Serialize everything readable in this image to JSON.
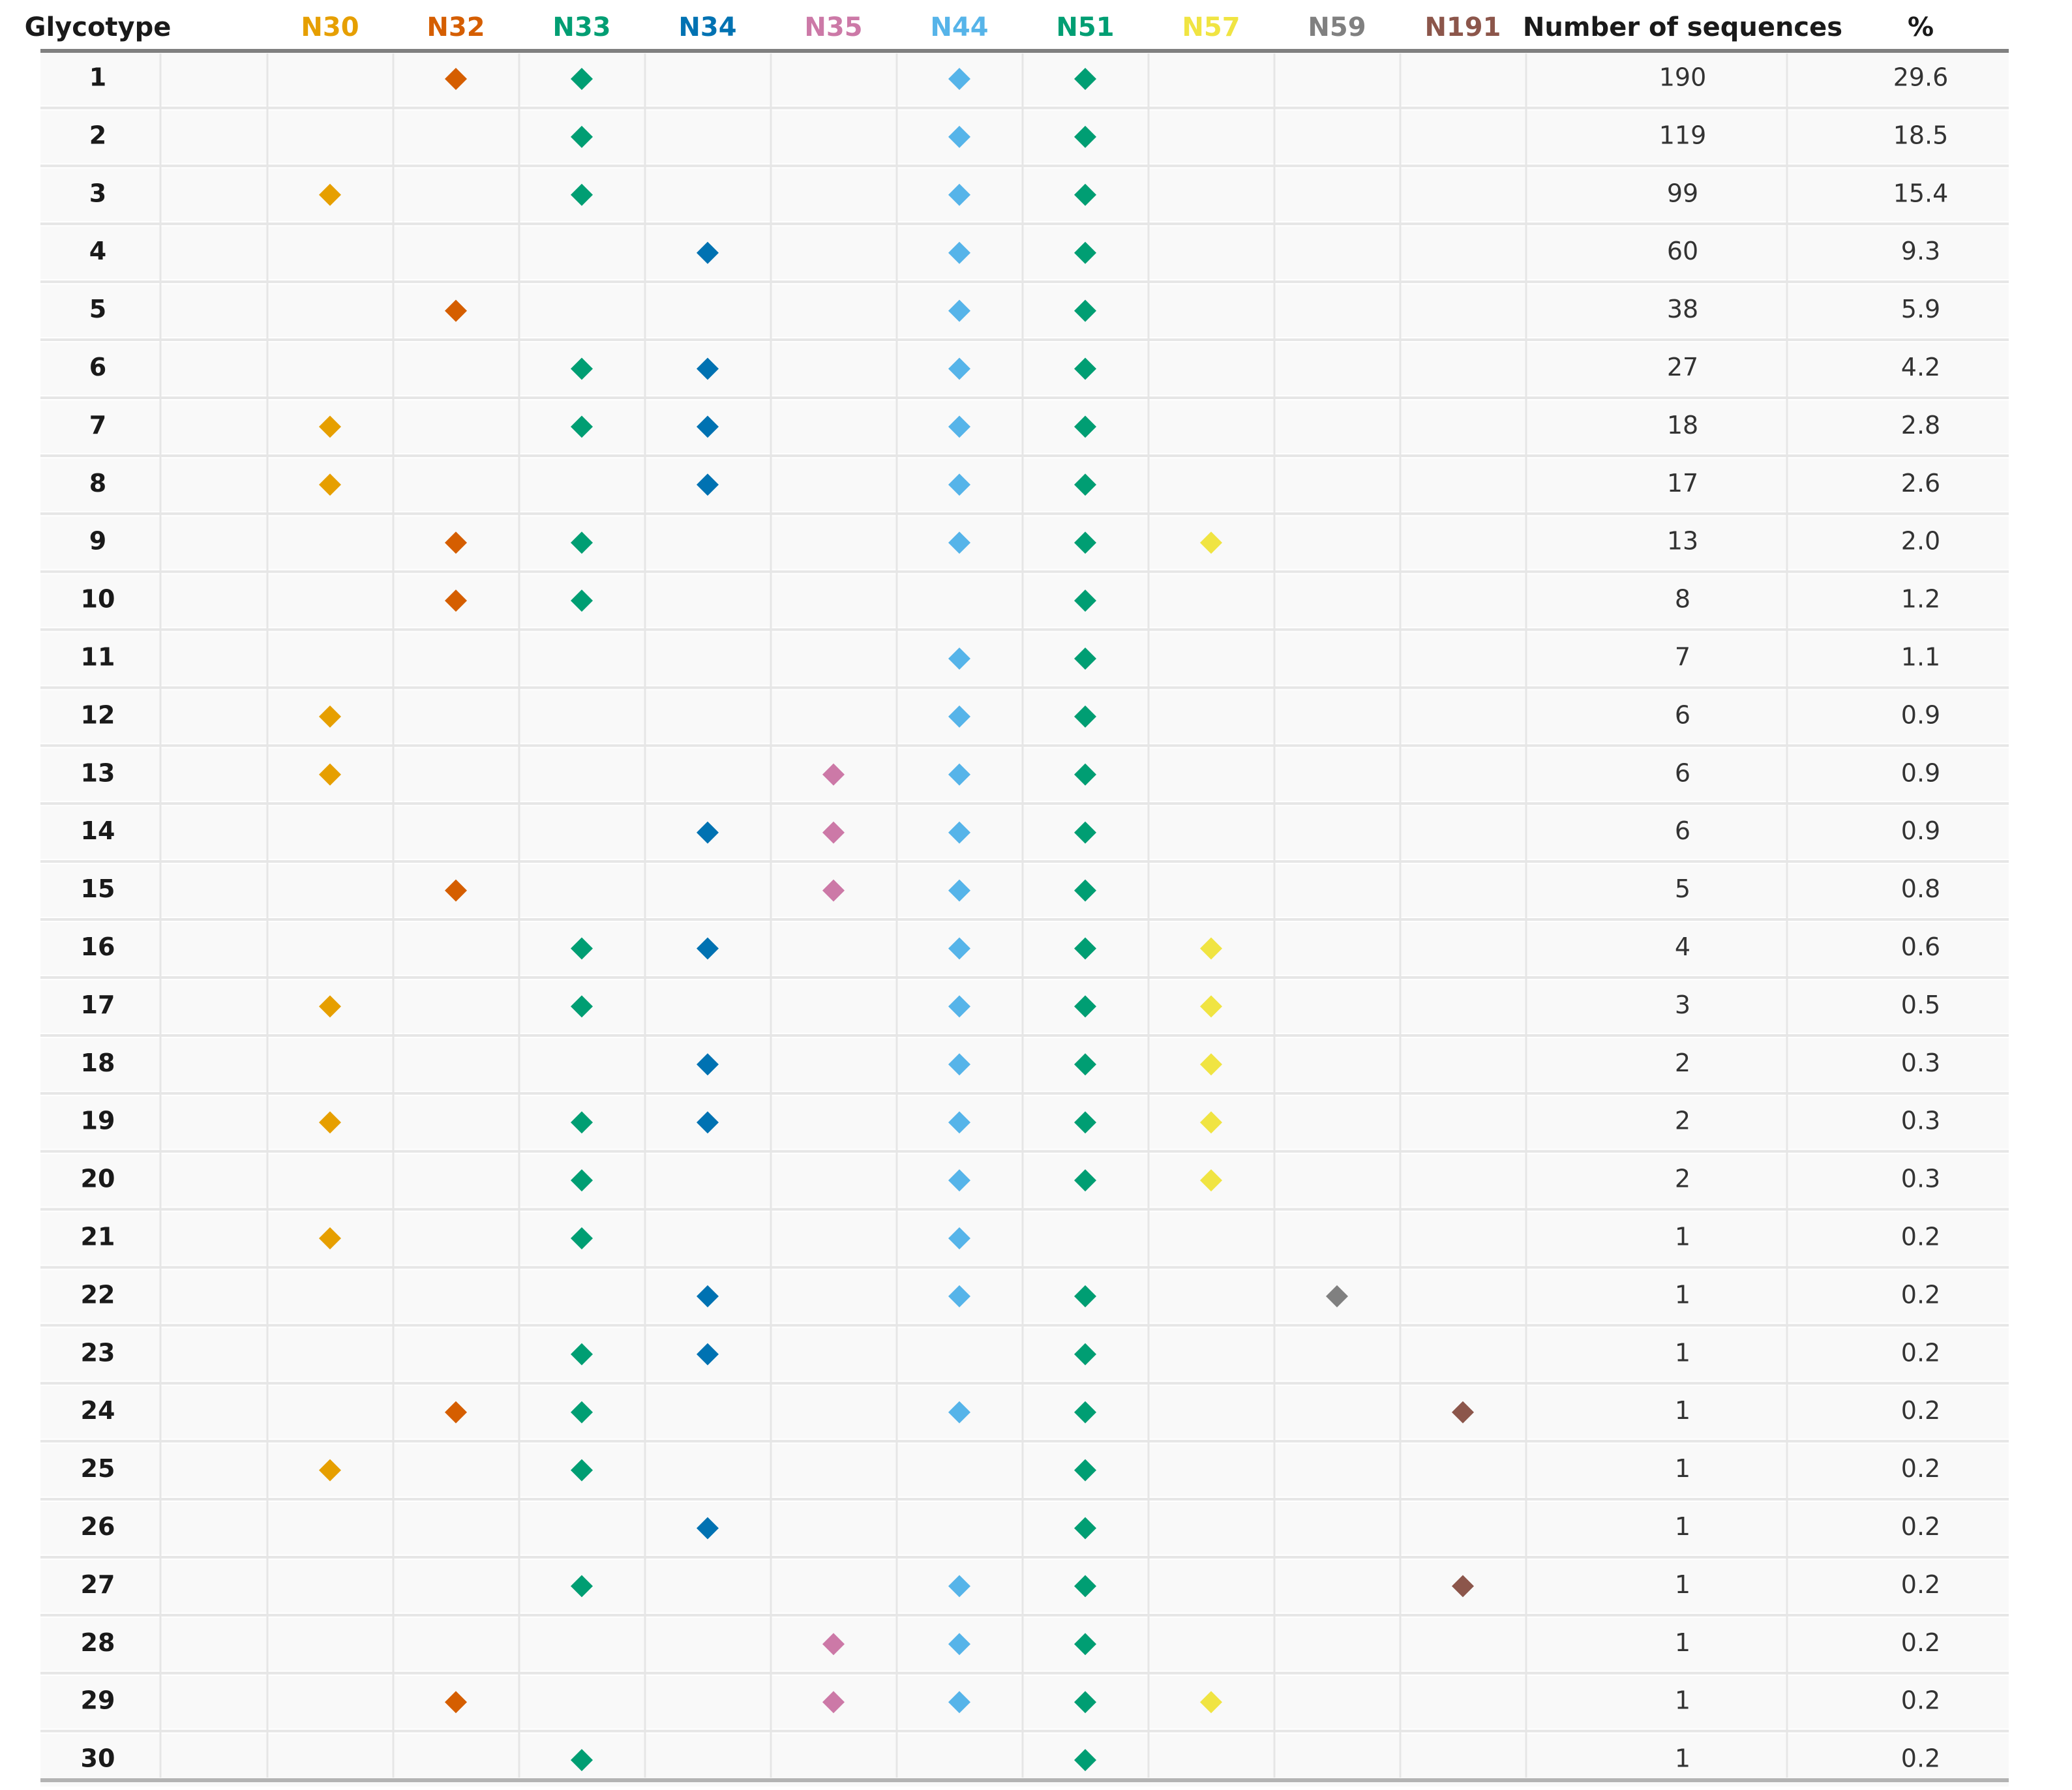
{
  "chart_data": {
    "type": "table",
    "columns": {
      "glycotype": "Glycotype",
      "sites": [
        {
          "label": "N30",
          "color": "#E69F00"
        },
        {
          "label": "N32",
          "color": "#D55E00"
        },
        {
          "label": "N33",
          "color": "#009E73"
        },
        {
          "label": "N34",
          "color": "#0072B2"
        },
        {
          "label": "N35",
          "color": "#CC79A7"
        },
        {
          "label": "N44",
          "color": "#56B4E9"
        },
        {
          "label": "N51",
          "color": "#009E73"
        },
        {
          "label": "N57",
          "color": "#F0E442"
        },
        {
          "label": "N59",
          "color": "#808080"
        },
        {
          "label": "N191",
          "color": "#8C564B"
        }
      ],
      "count": "Number of sequences",
      "percent": "%"
    },
    "rows": [
      {
        "glycotype": "1",
        "sites": [
          "N32",
          "N33",
          "N44",
          "N51"
        ],
        "count": "190",
        "percent": "29.6"
      },
      {
        "glycotype": "2",
        "sites": [
          "N33",
          "N44",
          "N51"
        ],
        "count": "119",
        "percent": "18.5"
      },
      {
        "glycotype": "3",
        "sites": [
          "N30",
          "N33",
          "N44",
          "N51"
        ],
        "count": "99",
        "percent": "15.4"
      },
      {
        "glycotype": "4",
        "sites": [
          "N34",
          "N44",
          "N51"
        ],
        "count": "60",
        "percent": "9.3"
      },
      {
        "glycotype": "5",
        "sites": [
          "N32",
          "N44",
          "N51"
        ],
        "count": "38",
        "percent": "5.9"
      },
      {
        "glycotype": "6",
        "sites": [
          "N33",
          "N34",
          "N44",
          "N51"
        ],
        "count": "27",
        "percent": "4.2"
      },
      {
        "glycotype": "7",
        "sites": [
          "N30",
          "N33",
          "N34",
          "N44",
          "N51"
        ],
        "count": "18",
        "percent": "2.8"
      },
      {
        "glycotype": "8",
        "sites": [
          "N30",
          "N34",
          "N44",
          "N51"
        ],
        "count": "17",
        "percent": "2.6"
      },
      {
        "glycotype": "9",
        "sites": [
          "N32",
          "N33",
          "N44",
          "N51",
          "N57"
        ],
        "count": "13",
        "percent": "2.0"
      },
      {
        "glycotype": "10",
        "sites": [
          "N32",
          "N33",
          "N51"
        ],
        "count": "8",
        "percent": "1.2"
      },
      {
        "glycotype": "11",
        "sites": [
          "N44",
          "N51"
        ],
        "count": "7",
        "percent": "1.1"
      },
      {
        "glycotype": "12",
        "sites": [
          "N30",
          "N44",
          "N51"
        ],
        "count": "6",
        "percent": "0.9"
      },
      {
        "glycotype": "13",
        "sites": [
          "N30",
          "N35",
          "N44",
          "N51"
        ],
        "count": "6",
        "percent": "0.9"
      },
      {
        "glycotype": "14",
        "sites": [
          "N34",
          "N35",
          "N44",
          "N51"
        ],
        "count": "6",
        "percent": "0.9"
      },
      {
        "glycotype": "15",
        "sites": [
          "N32",
          "N35",
          "N44",
          "N51"
        ],
        "count": "5",
        "percent": "0.8"
      },
      {
        "glycotype": "16",
        "sites": [
          "N33",
          "N34",
          "N44",
          "N51",
          "N57"
        ],
        "count": "4",
        "percent": "0.6"
      },
      {
        "glycotype": "17",
        "sites": [
          "N30",
          "N33",
          "N44",
          "N51",
          "N57"
        ],
        "count": "3",
        "percent": "0.5"
      },
      {
        "glycotype": "18",
        "sites": [
          "N34",
          "N44",
          "N51",
          "N57"
        ],
        "count": "2",
        "percent": "0.3"
      },
      {
        "glycotype": "19",
        "sites": [
          "N30",
          "N33",
          "N34",
          "N44",
          "N51",
          "N57"
        ],
        "count": "2",
        "percent": "0.3"
      },
      {
        "glycotype": "20",
        "sites": [
          "N33",
          "N44",
          "N51",
          "N57"
        ],
        "count": "2",
        "percent": "0.3"
      },
      {
        "glycotype": "21",
        "sites": [
          "N30",
          "N33",
          "N44"
        ],
        "count": "1",
        "percent": "0.2"
      },
      {
        "glycotype": "22",
        "sites": [
          "N34",
          "N44",
          "N51",
          "N59"
        ],
        "count": "1",
        "percent": "0.2"
      },
      {
        "glycotype": "23",
        "sites": [
          "N33",
          "N34",
          "N51"
        ],
        "count": "1",
        "percent": "0.2"
      },
      {
        "glycotype": "24",
        "sites": [
          "N32",
          "N33",
          "N44",
          "N51",
          "N191"
        ],
        "count": "1",
        "percent": "0.2"
      },
      {
        "glycotype": "25",
        "sites": [
          "N30",
          "N33",
          "N51"
        ],
        "count": "1",
        "percent": "0.2"
      },
      {
        "glycotype": "26",
        "sites": [
          "N34",
          "N51"
        ],
        "count": "1",
        "percent": "0.2"
      },
      {
        "glycotype": "27",
        "sites": [
          "N33",
          "N44",
          "N51",
          "N191"
        ],
        "count": "1",
        "percent": "0.2"
      },
      {
        "glycotype": "28",
        "sites": [
          "N35",
          "N44",
          "N51"
        ],
        "count": "1",
        "percent": "0.2"
      },
      {
        "glycotype": "29",
        "sites": [
          "N32",
          "N35",
          "N44",
          "N51",
          "N57"
        ],
        "count": "1",
        "percent": "0.2"
      },
      {
        "glycotype": "30",
        "sites": [
          "N33",
          "N51"
        ],
        "count": "1",
        "percent": "0.2"
      }
    ]
  }
}
